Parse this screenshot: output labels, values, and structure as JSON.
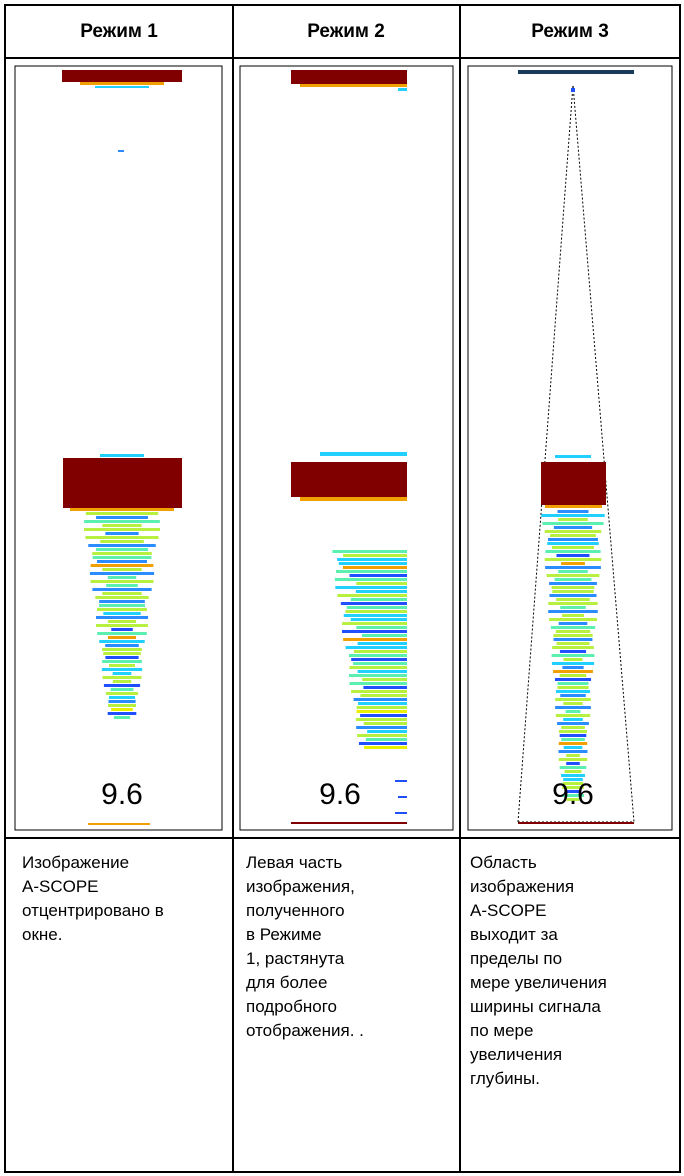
{
  "header": {
    "columns": [
      "Режим 1",
      "Режим 2",
      "Режим 3"
    ]
  },
  "images": [
    {
      "label": "9.6"
    },
    {
      "label": "9.6"
    },
    {
      "label": "9.6"
    }
  ],
  "descriptions": [
    [
      "Изображение",
      "A-SCOPE",
      "отцентрировано в",
      "окне."
    ],
    [
      "Левая часть",
      "изображения,",
      "полученного",
      "в  Режиме",
      "1,  растянута",
      "для  более",
      "подробного",
      "отображения.  ."
    ],
    [
      "Область",
      "изображения",
      "A-SCOPE",
      "выходит  за",
      "пределы  по",
      "мере увеличения",
      "ширины сигнала",
      "по  мере",
      "увеличения",
      "глубины."
    ]
  ]
}
